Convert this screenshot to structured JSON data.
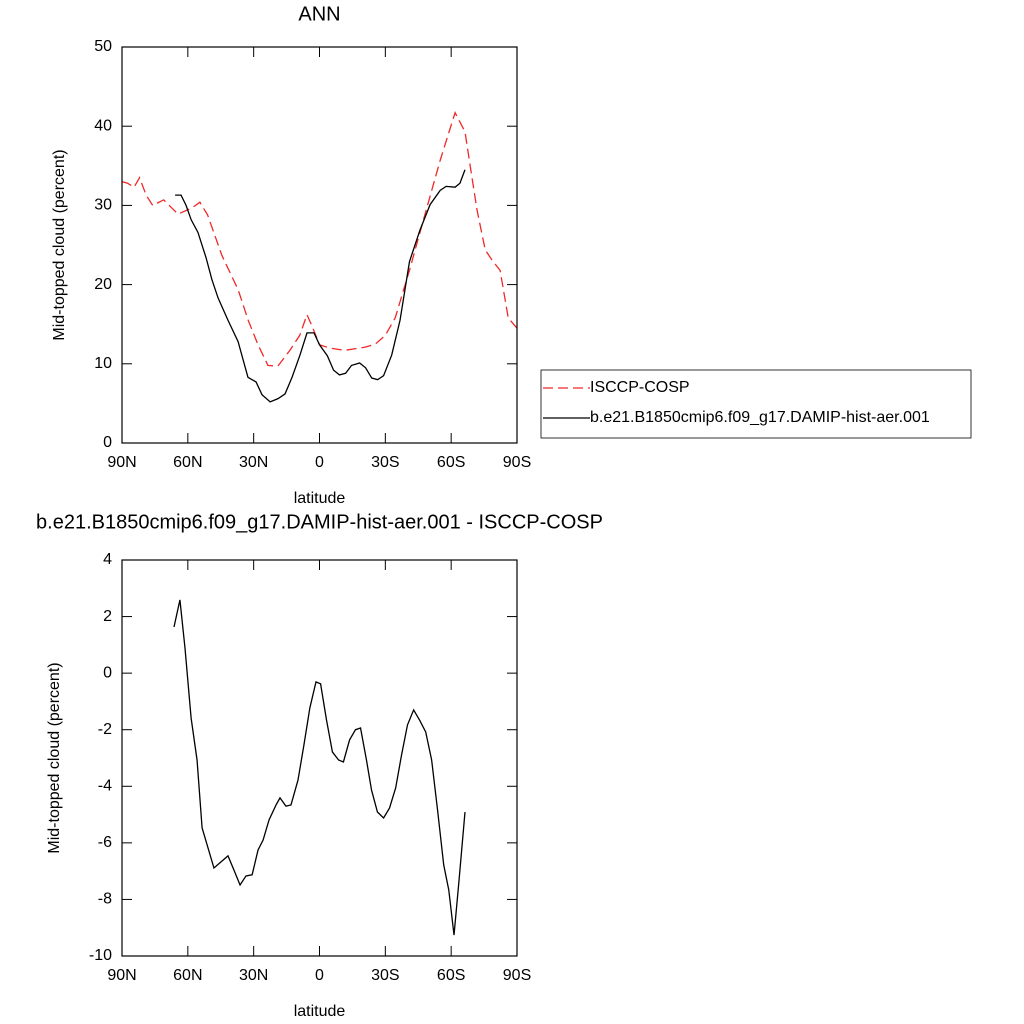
{
  "chart_data": [
    {
      "type": "line",
      "title": "ANN",
      "xlabel": "latitude",
      "ylabel": "Mid-topped cloud (percent)",
      "xlim": [
        90,
        -90
      ],
      "xticks": [
        {
          "value": 90,
          "label": "90N"
        },
        {
          "value": 60,
          "label": "60N"
        },
        {
          "value": 30,
          "label": "30N"
        },
        0,
        {
          "value": -30,
          "label": "30S"
        },
        {
          "value": -60,
          "label": "60S"
        },
        {
          "value": -90,
          "label": "90S"
        }
      ],
      "ylim": [
        0,
        50
      ],
      "yticks": [
        0,
        10,
        20,
        30,
        40,
        50
      ],
      "legend": "right",
      "series": [
        {
          "name": "ISCCP-COSP",
          "color": "#f02828",
          "dash": "dashed",
          "x": [
            90,
            87.5,
            84.5,
            82,
            79,
            76,
            71,
            64.5,
            58,
            54.5,
            51,
            44.5,
            37,
            32.5,
            28,
            23.5,
            19,
            13.5,
            9,
            5.7,
            3,
            0,
            -4.5,
            -11.6,
            -20.8,
            -25.5,
            -30,
            -34.5,
            -41,
            -48,
            -55,
            -58.6,
            -61.8,
            -66.3,
            -68.6,
            -71.8,
            -75.5,
            -78.6,
            -82.3,
            -86,
            -90
          ],
          "values": [
            33.0,
            32.8,
            32.3,
            33.5,
            31.3,
            30.0,
            30.7,
            28.9,
            29.7,
            30.4,
            28.8,
            23.7,
            19.3,
            15.5,
            12.4,
            9.8,
            9.7,
            11.7,
            13.6,
            16.2,
            14.5,
            12.4,
            12.0,
            11.7,
            12.1,
            12.5,
            13.6,
            15.8,
            21.8,
            28.8,
            35.7,
            38.9,
            41.7,
            39.3,
            35.1,
            29.4,
            24.4,
            23.1,
            21.8,
            15.8,
            14.5
          ]
        },
        {
          "name": "b.e21.B1850cmip6.f09_g17.DAMIP-hist-aer.001",
          "color": "#000000",
          "dash": "solid",
          "x": [
            65.8,
            63.1,
            60.8,
            58.5,
            55.4,
            51.7,
            49,
            46.2,
            41.7,
            37.1,
            32.6,
            28.9,
            26.2,
            22.5,
            18.9,
            15.7,
            12.5,
            8.9,
            5.7,
            2.5,
            0,
            -3.6,
            -6.4,
            -9.1,
            -11.9,
            -14.6,
            -18.3,
            -21,
            -23.8,
            -26.5,
            -29.2,
            -32.9,
            -36.7,
            -41,
            -45.8,
            -50.4,
            -55,
            -57.7,
            -61.8,
            -64,
            -66.3
          ],
          "values": [
            31.3,
            31.3,
            30.0,
            28.2,
            26.6,
            23.4,
            20.6,
            18.3,
            15.5,
            12.8,
            8.3,
            7.7,
            6.1,
            5.2,
            5.6,
            6.2,
            8.3,
            11.1,
            13.9,
            13.9,
            12.4,
            11.0,
            9.2,
            8.6,
            8.8,
            9.8,
            10.1,
            9.5,
            8.2,
            8.0,
            8.5,
            11.1,
            15.5,
            22.9,
            26.9,
            30.1,
            31.9,
            32.4,
            32.3,
            32.8,
            34.5
          ]
        }
      ]
    },
    {
      "type": "line",
      "title": "b.e21.B1850cmip6.f09_g17.DAMIP-hist-aer.001 - ISCCP-COSP",
      "xlabel": "latitude",
      "ylabel": "Mid-topped cloud (percent)",
      "xlim": [
        90,
        -90
      ],
      "xticks": [
        {
          "value": 90,
          "label": "90N"
        },
        {
          "value": 60,
          "label": "60N"
        },
        {
          "value": 30,
          "label": "30N"
        },
        0,
        {
          "value": -30,
          "label": "30S"
        },
        {
          "value": -60,
          "label": "60S"
        },
        {
          "value": -90,
          "label": "90S"
        }
      ],
      "ylim": [
        -10,
        4
      ],
      "yticks": [
        -10,
        -8,
        -6,
        -4,
        -2,
        0,
        2,
        4
      ],
      "series": [
        {
          "color": "#000000",
          "dash": "solid",
          "x": [
            66.3,
            63.6,
            61.3,
            58.5,
            55.8,
            53.5,
            50.8,
            48.1,
            41.7,
            39,
            36.2,
            33.5,
            30.7,
            28,
            25.7,
            23,
            19.8,
            18,
            15.3,
            13,
            9.8,
            7.1,
            4.4,
            1.6,
            -0.5,
            -3.2,
            -5.9,
            -8.7,
            -10.9,
            -13.7,
            -16.4,
            -18.7,
            -21.4,
            -23.7,
            -26.4,
            -29.2,
            -31.9,
            -34.7,
            -37.4,
            -40.1,
            -42.9,
            -45.6,
            -48.4,
            -51.1,
            -53.8,
            -56.6,
            -58.9,
            -61.3,
            -63.6,
            -66.3
          ],
          "values": [
            1.63,
            2.59,
            0.89,
            -1.59,
            -3.07,
            -5.47,
            -6.18,
            -6.89,
            -6.46,
            -6.96,
            -7.49,
            -7.17,
            -7.13,
            -6.25,
            -5.9,
            -5.19,
            -4.66,
            -4.41,
            -4.7,
            -4.66,
            -3.78,
            -2.54,
            -1.23,
            -0.31,
            -0.38,
            -1.66,
            -2.79,
            -3.07,
            -3.14,
            -2.36,
            -2.0,
            -1.94,
            -3.07,
            -4.13,
            -4.91,
            -5.12,
            -4.77,
            -4.06,
            -2.89,
            -1.83,
            -1.3,
            -1.66,
            -2.08,
            -3.07,
            -4.84,
            -6.78,
            -7.66,
            -9.26,
            -7.31,
            -4.91
          ]
        }
      ]
    }
  ]
}
